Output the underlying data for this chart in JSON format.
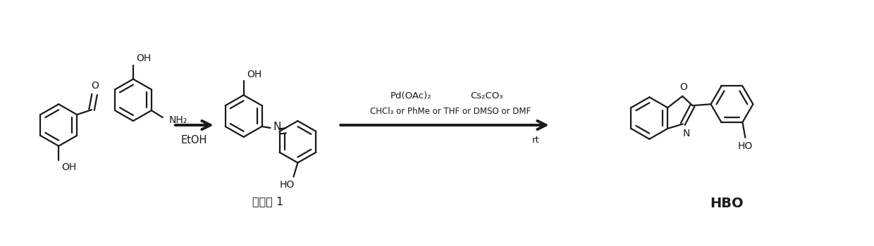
{
  "bg_color": "#ffffff",
  "line_color": "#1a1a1a",
  "figsize": [
    12.4,
    3.5
  ],
  "dpi": 100,
  "arrow1_label": "EtOH",
  "arrow2_label_top1": "Pd(OAc)₂",
  "arrow2_label_top2": "Cs₂CO₃",
  "arrow2_label_bottom": "CHCl₃ or PhMe or THF or DMSO or DMF",
  "arrow2_label_rt": "rt",
  "label_intermediate": "中间体 1",
  "label_product": "HBO"
}
